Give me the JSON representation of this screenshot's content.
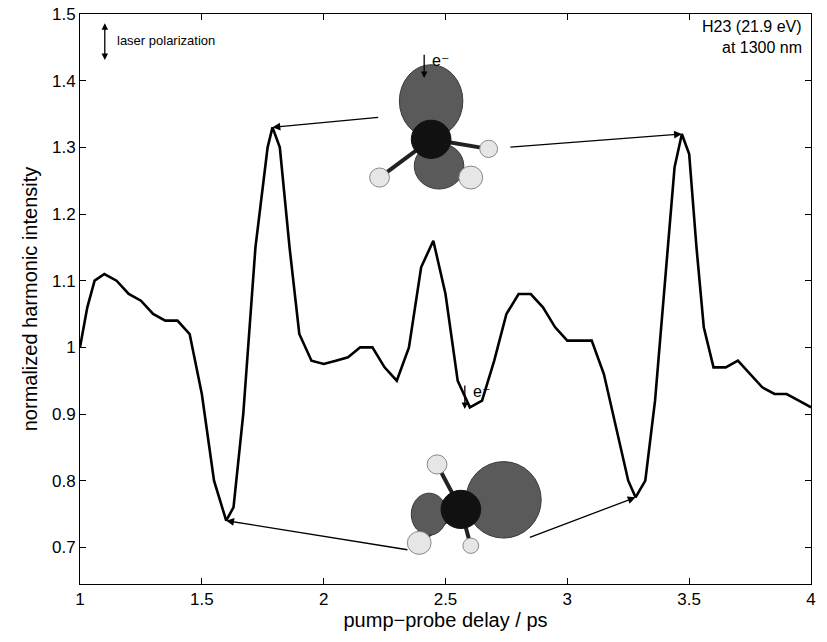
{
  "chart_data": {
    "type": "line",
    "x_label": "pump−probe delay / ps",
    "y_label": "normalized harmonic intensity",
    "annotations": [
      "laser polarization",
      "H23 (21.9 eV)",
      "at 1300 nm",
      "e⁻",
      "e⁻"
    ],
    "x": [
      1.0,
      1.03,
      1.06,
      1.1,
      1.15,
      1.2,
      1.25,
      1.3,
      1.35,
      1.4,
      1.45,
      1.5,
      1.55,
      1.6,
      1.63,
      1.67,
      1.72,
      1.77,
      1.79,
      1.82,
      1.86,
      1.9,
      1.95,
      2.0,
      2.05,
      2.1,
      2.15,
      2.2,
      2.25,
      2.3,
      2.35,
      2.4,
      2.45,
      2.5,
      2.55,
      2.6,
      2.65,
      2.7,
      2.75,
      2.8,
      2.85,
      2.9,
      2.95,
      3.0,
      3.05,
      3.1,
      3.15,
      3.2,
      3.25,
      3.28,
      3.32,
      3.36,
      3.4,
      3.44,
      3.47,
      3.5,
      3.53,
      3.56,
      3.6,
      3.65,
      3.7,
      3.75,
      3.8,
      3.85,
      3.9,
      3.95,
      4.0
    ],
    "values": [
      1.0,
      1.06,
      1.1,
      1.11,
      1.1,
      1.08,
      1.07,
      1.05,
      1.04,
      1.04,
      1.02,
      0.93,
      0.8,
      0.74,
      0.76,
      0.9,
      1.15,
      1.3,
      1.33,
      1.3,
      1.15,
      1.02,
      0.98,
      0.975,
      0.98,
      0.985,
      1.0,
      1.0,
      0.97,
      0.95,
      1.0,
      1.12,
      1.16,
      1.08,
      0.95,
      0.91,
      0.92,
      0.98,
      1.05,
      1.08,
      1.08,
      1.06,
      1.03,
      1.01,
      1.01,
      1.01,
      0.96,
      0.88,
      0.8,
      0.775,
      0.8,
      0.92,
      1.1,
      1.27,
      1.32,
      1.29,
      1.15,
      1.03,
      0.97,
      0.97,
      0.98,
      0.96,
      0.94,
      0.93,
      0.93,
      0.92,
      0.91
    ],
    "color": "#000000",
    "xlim": [
      1,
      4
    ],
    "ylim": [
      0.645,
      1.5
    ],
    "xticks": [
      1,
      1.5,
      2,
      2.5,
      3,
      3.5,
      4
    ],
    "yticks": [
      0.7,
      0.8,
      0.9,
      1,
      1.1,
      1.2,
      1.3,
      1.4,
      1.5
    ],
    "grid": false
  }
}
